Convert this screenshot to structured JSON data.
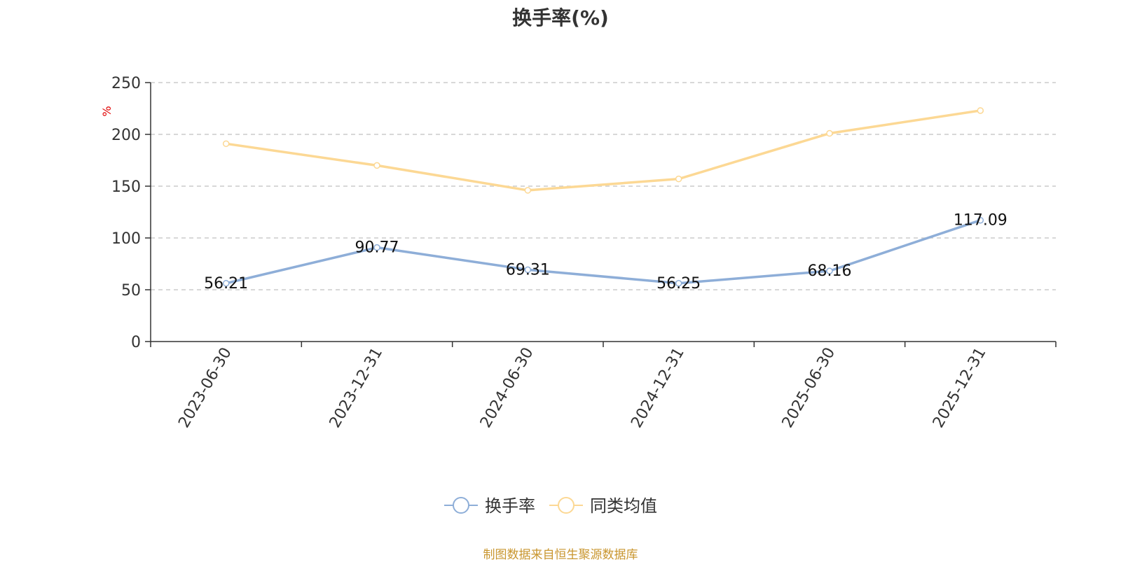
{
  "chart_data": {
    "type": "line",
    "title": "换手率(%)",
    "ylabel": "%",
    "xlabel": "",
    "ylim": [
      0,
      250
    ],
    "yticks": [
      0,
      50,
      100,
      150,
      200,
      250
    ],
    "grid": true,
    "legend_position": "bottom-center",
    "categories": [
      "2023-06-30",
      "2023-12-31",
      "2024-06-30",
      "2024-12-31",
      "2025-06-30",
      "2025-12-31"
    ],
    "series": [
      {
        "name": "换手率",
        "color": "#8eaed8",
        "values": [
          56.21,
          90.77,
          69.31,
          56.25,
          68.16,
          117.09
        ],
        "labels": [
          "56.21",
          "90.77",
          "69.31",
          "56.25",
          "68.16",
          "117.09"
        ]
      },
      {
        "name": "同类均值",
        "color": "#fcd894",
        "values": [
          191,
          170,
          146,
          157,
          201,
          223
        ]
      }
    ],
    "source": "制图数据来自恒生聚源数据库",
    "source_color": "#c9962f",
    "ylabel_color": "#e00000"
  }
}
